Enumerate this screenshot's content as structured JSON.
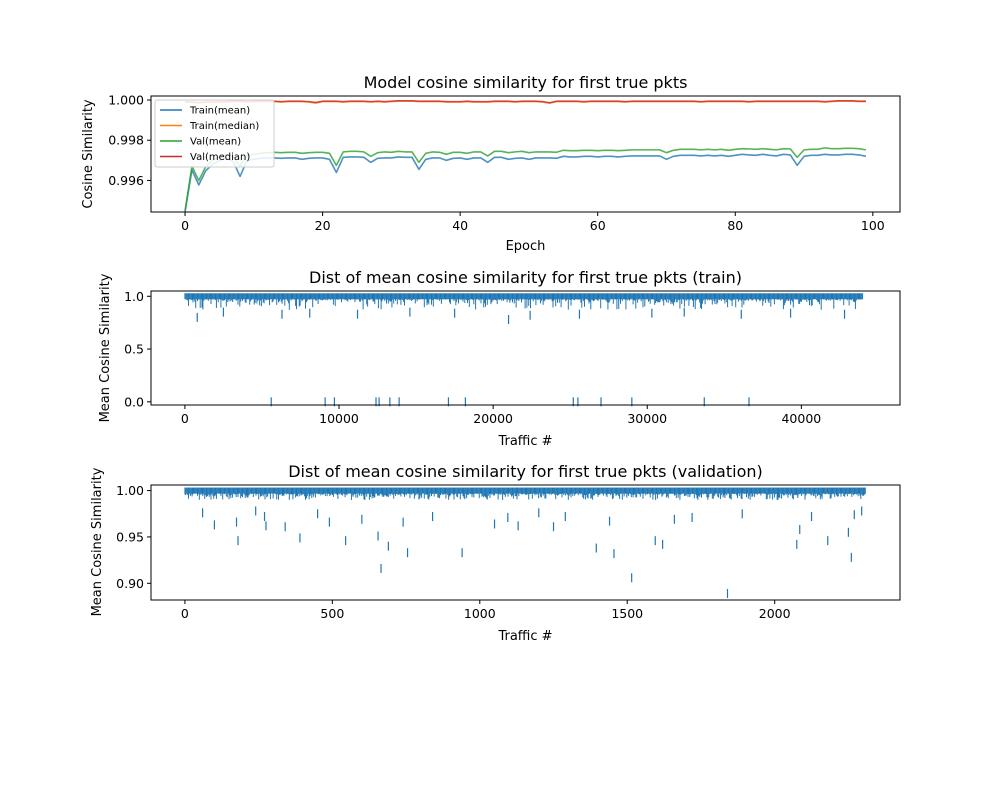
{
  "chart_data": [
    {
      "type": "line",
      "title": "Model cosine similarity for first true pkts",
      "xlabel": "Epoch",
      "ylabel": "Cosine Similarity",
      "xlim": [
        -4.95,
        103.95
      ],
      "ylim": [
        0.99443,
        1.0002
      ],
      "xticks": [
        0,
        20,
        40,
        60,
        80,
        100
      ],
      "xtick_labels": [
        "0",
        "20",
        "40",
        "60",
        "80",
        "100"
      ],
      "yticks": [
        0.996,
        0.998,
        1.0
      ],
      "ytick_labels": [
        "0.996",
        "0.998",
        "1.000"
      ],
      "grid": false,
      "legend": "upper-left",
      "colors": {
        "train_mean": "#1f77b4",
        "train_median": "#ff7f0e",
        "val_mean": "#2ca02c",
        "val_median": "#d62728"
      },
      "x": [
        0,
        1,
        2,
        3,
        4,
        5,
        6,
        7,
        8,
        9,
        10,
        11,
        12,
        13,
        14,
        15,
        16,
        17,
        18,
        19,
        20,
        21,
        22,
        23,
        24,
        25,
        26,
        27,
        28,
        29,
        30,
        31,
        32,
        33,
        34,
        35,
        36,
        37,
        38,
        39,
        40,
        41,
        42,
        43,
        44,
        45,
        46,
        47,
        48,
        49,
        50,
        51,
        52,
        53,
        54,
        55,
        56,
        57,
        58,
        59,
        60,
        61,
        62,
        63,
        64,
        65,
        66,
        67,
        68,
        69,
        70,
        71,
        72,
        73,
        74,
        75,
        76,
        77,
        78,
        79,
        80,
        81,
        82,
        83,
        84,
        85,
        86,
        87,
        88,
        89,
        90,
        91,
        92,
        93,
        94,
        95,
        96,
        97,
        98,
        99
      ],
      "series": [
        {
          "name": "Train(mean)",
          "values": [
            0.99443,
            0.99652,
            0.99578,
            0.99648,
            0.9968,
            0.997,
            0.9971,
            0.99695,
            0.9962,
            0.997,
            0.99705,
            0.9971,
            0.99712,
            0.99712,
            0.9971,
            0.99712,
            0.99712,
            0.99705,
            0.9971,
            0.99712,
            0.99712,
            0.99705,
            0.9964,
            0.99715,
            0.99717,
            0.99717,
            0.99715,
            0.9969,
            0.9971,
            0.99712,
            0.99712,
            0.99717,
            0.99715,
            0.99715,
            0.99655,
            0.99705,
            0.99712,
            0.99712,
            0.997,
            0.9971,
            0.99712,
            0.99705,
            0.99712,
            0.99712,
            0.9969,
            0.99715,
            0.99715,
            0.99705,
            0.9971,
            0.99712,
            0.99705,
            0.99712,
            0.99712,
            0.99712,
            0.9971,
            0.9972,
            0.99717,
            0.99717,
            0.9972,
            0.9972,
            0.99717,
            0.9972,
            0.9972,
            0.99717,
            0.9972,
            0.99722,
            0.99722,
            0.99722,
            0.99722,
            0.99722,
            0.99705,
            0.9972,
            0.99725,
            0.99725,
            0.99725,
            0.99722,
            0.99725,
            0.99722,
            0.99725,
            0.9972,
            0.99725,
            0.9973,
            0.99727,
            0.99725,
            0.9973,
            0.99725,
            0.99722,
            0.9973,
            0.99727,
            0.99675,
            0.9972,
            0.99725,
            0.99725,
            0.9973,
            0.99727,
            0.99727,
            0.9973,
            0.9973,
            0.99727,
            0.9972
          ]
        },
        {
          "name": "Train(median)",
          "values": [
            0.9999,
            0.99988,
            0.99985,
            0.99988,
            0.99988,
            0.9999,
            0.9999,
            0.99992,
            0.99992,
            0.9999,
            0.99992,
            0.99992,
            0.99992,
            0.99992,
            0.9999,
            0.99992,
            0.99992,
            0.99992,
            0.9999,
            0.99985,
            0.99992,
            0.99992,
            0.99992,
            0.9999,
            0.99992,
            0.99992,
            0.99992,
            0.9999,
            0.99992,
            0.9999,
            0.99992,
            0.99995,
            0.99995,
            0.99995,
            0.99992,
            0.99992,
            0.99992,
            0.99992,
            0.9999,
            0.9999,
            0.9999,
            0.99992,
            0.9999,
            0.9999,
            0.9999,
            0.99992,
            0.99992,
            0.99992,
            0.9999,
            0.99992,
            0.99992,
            0.99992,
            0.9999,
            0.99985,
            0.99992,
            0.99992,
            0.99992,
            0.99992,
            0.9999,
            0.99992,
            0.99992,
            0.99992,
            0.99992,
            0.99992,
            0.9999,
            0.99992,
            0.99992,
            0.99992,
            0.99992,
            0.99992,
            0.99992,
            0.99992,
            0.99992,
            0.99992,
            0.99992,
            0.9999,
            0.99992,
            0.99992,
            0.99992,
            0.99992,
            0.99992,
            0.99992,
            0.9999,
            0.99992,
            0.99992,
            0.99992,
            0.99992,
            0.99992,
            0.99992,
            0.99992,
            0.99992,
            0.99992,
            0.99992,
            0.9999,
            0.99992,
            0.99995,
            0.99995,
            0.99995,
            0.99992,
            0.99992
          ]
        },
        {
          "name": "Val(mean)",
          "values": [
            0.9945,
            0.9967,
            0.996,
            0.99668,
            0.997,
            0.9972,
            0.99728,
            0.9972,
            0.9967,
            0.99725,
            0.9973,
            0.99735,
            0.99738,
            0.9974,
            0.99738,
            0.9974,
            0.9974,
            0.99735,
            0.99738,
            0.9974,
            0.9974,
            0.99735,
            0.99675,
            0.99742,
            0.99745,
            0.99745,
            0.99742,
            0.9972,
            0.99738,
            0.99742,
            0.9974,
            0.99745,
            0.99742,
            0.99742,
            0.9969,
            0.99735,
            0.99742,
            0.9974,
            0.9973,
            0.9974,
            0.9974,
            0.99735,
            0.99742,
            0.99742,
            0.99722,
            0.99745,
            0.99745,
            0.99738,
            0.99742,
            0.99745,
            0.99738,
            0.99742,
            0.99742,
            0.99742,
            0.9974,
            0.9975,
            0.99748,
            0.99748,
            0.9975,
            0.9975,
            0.99748,
            0.9975,
            0.9975,
            0.99748,
            0.9975,
            0.99752,
            0.99752,
            0.99752,
            0.99752,
            0.99752,
            0.99738,
            0.9975,
            0.99755,
            0.99755,
            0.99755,
            0.99752,
            0.99755,
            0.99752,
            0.99755,
            0.9975,
            0.99755,
            0.99758,
            0.99757,
            0.99755,
            0.99758,
            0.99755,
            0.99752,
            0.99758,
            0.99757,
            0.99715,
            0.99752,
            0.99755,
            0.99755,
            0.99762,
            0.99758,
            0.99758,
            0.9976,
            0.9976,
            0.99758,
            0.99752
          ]
        },
        {
          "name": "Val(median)",
          "values": [
            0.99992,
            0.9999,
            0.99988,
            0.9999,
            0.9999,
            0.99992,
            0.99992,
            0.99994,
            0.99994,
            0.99992,
            0.99994,
            0.99994,
            0.99994,
            0.99994,
            0.99992,
            0.99994,
            0.99994,
            0.99994,
            0.99992,
            0.99988,
            0.99994,
            0.99994,
            0.99994,
            0.99992,
            0.99994,
            0.99994,
            0.99994,
            0.99992,
            0.99994,
            0.99992,
            0.99994,
            0.99996,
            0.99996,
            0.99996,
            0.99994,
            0.99994,
            0.99994,
            0.99994,
            0.99992,
            0.99992,
            0.99992,
            0.99994,
            0.99992,
            0.99992,
            0.99992,
            0.99994,
            0.99994,
            0.99994,
            0.99992,
            0.99994,
            0.99994,
            0.99994,
            0.99992,
            0.99986,
            0.99994,
            0.99994,
            0.99994,
            0.99994,
            0.99992,
            0.99994,
            0.99994,
            0.99994,
            0.99994,
            0.99994,
            0.99992,
            0.99994,
            0.99994,
            0.99994,
            0.99994,
            0.99994,
            0.99994,
            0.99994,
            0.99994,
            0.99994,
            0.99994,
            0.99992,
            0.99994,
            0.99994,
            0.99994,
            0.99994,
            0.99994,
            0.99994,
            0.99992,
            0.99994,
            0.99994,
            0.99994,
            0.99994,
            0.99994,
            0.99994,
            0.99994,
            0.99994,
            0.99994,
            0.99994,
            0.99992,
            0.99994,
            0.99996,
            0.99996,
            0.99996,
            0.99994,
            0.99994
          ]
        }
      ]
    },
    {
      "type": "scatter",
      "marker": "vertical-line",
      "title": "Dist of mean cosine similarity for first true pkts (train)",
      "xlabel": "Traffic #",
      "ylabel": "Mean Cosine Similarity",
      "xlim": [
        -2200,
        46400
      ],
      "ylim": [
        -0.03,
        1.05
      ],
      "xticks": [
        0,
        10000,
        20000,
        30000,
        40000
      ],
      "xtick_labels": [
        "0",
        "10000",
        "20000",
        "30000",
        "40000"
      ],
      "yticks": [
        0.0,
        0.5,
        1.0
      ],
      "ytick_labels": [
        "0.0",
        "0.5",
        "1.0"
      ],
      "grid": false,
      "color": "#1f77b4",
      "x_range": [
        0,
        44000
      ],
      "dense_band": [
        0.9,
        1.0
      ],
      "outliers": [
        {
          "x": 5600,
          "y": 0.0
        },
        {
          "x": 9100,
          "y": 0.0
        },
        {
          "x": 9700,
          "y": 0.0
        },
        {
          "x": 12400,
          "y": 0.0
        },
        {
          "x": 12600,
          "y": 0.0
        },
        {
          "x": 13300,
          "y": 0.0
        },
        {
          "x": 13900,
          "y": 0.0
        },
        {
          "x": 17100,
          "y": 0.0
        },
        {
          "x": 18200,
          "y": 0.0
        },
        {
          "x": 25200,
          "y": 0.0
        },
        {
          "x": 25500,
          "y": 0.0
        },
        {
          "x": 27000,
          "y": 0.0
        },
        {
          "x": 29000,
          "y": 0.0
        },
        {
          "x": 33700,
          "y": 0.0
        },
        {
          "x": 36600,
          "y": 0.0
        },
        {
          "x": 800,
          "y": 0.8
        },
        {
          "x": 2500,
          "y": 0.85
        },
        {
          "x": 6300,
          "y": 0.83
        },
        {
          "x": 8100,
          "y": 0.84
        },
        {
          "x": 11200,
          "y": 0.83
        },
        {
          "x": 14600,
          "y": 0.85
        },
        {
          "x": 17500,
          "y": 0.84
        },
        {
          "x": 21000,
          "y": 0.78
        },
        {
          "x": 22400,
          "y": 0.82
        },
        {
          "x": 25600,
          "y": 0.83
        },
        {
          "x": 30300,
          "y": 0.84
        },
        {
          "x": 32400,
          "y": 0.85
        },
        {
          "x": 36100,
          "y": 0.83
        },
        {
          "x": 39300,
          "y": 0.84
        },
        {
          "x": 42800,
          "y": 0.83
        }
      ]
    },
    {
      "type": "scatter",
      "marker": "vertical-line",
      "title": "Dist of mean cosine similarity for first true pkts (validation)",
      "xlabel": "Traffic #",
      "ylabel": "Mean Cosine Similarity",
      "xlim": [
        -115,
        2425
      ],
      "ylim": [
        0.882,
        1.006
      ],
      "xticks": [
        0,
        500,
        1000,
        1500,
        2000
      ],
      "xtick_labels": [
        "0",
        "500",
        "1000",
        "1500",
        "2000"
      ],
      "yticks": [
        0.9,
        0.95,
        1.0
      ],
      "ytick_labels": [
        "0.90",
        "0.95",
        "1.00"
      ],
      "grid": false,
      "color": "#1f77b4",
      "x_range": [
        0,
        2310
      ],
      "dense_band": [
        0.993,
        1.0
      ],
      "outliers": [
        {
          "x": 60,
          "y": 0.976
        },
        {
          "x": 100,
          "y": 0.963
        },
        {
          "x": 175,
          "y": 0.966
        },
        {
          "x": 180,
          "y": 0.946
        },
        {
          "x": 240,
          "y": 0.978
        },
        {
          "x": 270,
          "y": 0.972
        },
        {
          "x": 275,
          "y": 0.962
        },
        {
          "x": 340,
          "y": 0.961
        },
        {
          "x": 390,
          "y": 0.949
        },
        {
          "x": 450,
          "y": 0.975
        },
        {
          "x": 490,
          "y": 0.966
        },
        {
          "x": 545,
          "y": 0.946
        },
        {
          "x": 600,
          "y": 0.969
        },
        {
          "x": 655,
          "y": 0.951
        },
        {
          "x": 665,
          "y": 0.916
        },
        {
          "x": 690,
          "y": 0.94
        },
        {
          "x": 740,
          "y": 0.966
        },
        {
          "x": 755,
          "y": 0.933
        },
        {
          "x": 840,
          "y": 0.972
        },
        {
          "x": 940,
          "y": 0.933
        },
        {
          "x": 1050,
          "y": 0.964
        },
        {
          "x": 1095,
          "y": 0.971
        },
        {
          "x": 1130,
          "y": 0.962
        },
        {
          "x": 1200,
          "y": 0.976
        },
        {
          "x": 1250,
          "y": 0.961
        },
        {
          "x": 1290,
          "y": 0.972
        },
        {
          "x": 1395,
          "y": 0.938
        },
        {
          "x": 1440,
          "y": 0.967
        },
        {
          "x": 1455,
          "y": 0.932
        },
        {
          "x": 1515,
          "y": 0.906
        },
        {
          "x": 1595,
          "y": 0.946
        },
        {
          "x": 1620,
          "y": 0.942
        },
        {
          "x": 1660,
          "y": 0.969
        },
        {
          "x": 1720,
          "y": 0.971
        },
        {
          "x": 1840,
          "y": 0.889
        },
        {
          "x": 1890,
          "y": 0.975
        },
        {
          "x": 2075,
          "y": 0.942
        },
        {
          "x": 2085,
          "y": 0.958
        },
        {
          "x": 2125,
          "y": 0.972
        },
        {
          "x": 2180,
          "y": 0.946
        },
        {
          "x": 2250,
          "y": 0.955
        },
        {
          "x": 2260,
          "y": 0.928
        },
        {
          "x": 2270,
          "y": 0.974
        },
        {
          "x": 2295,
          "y": 0.978
        }
      ]
    }
  ]
}
